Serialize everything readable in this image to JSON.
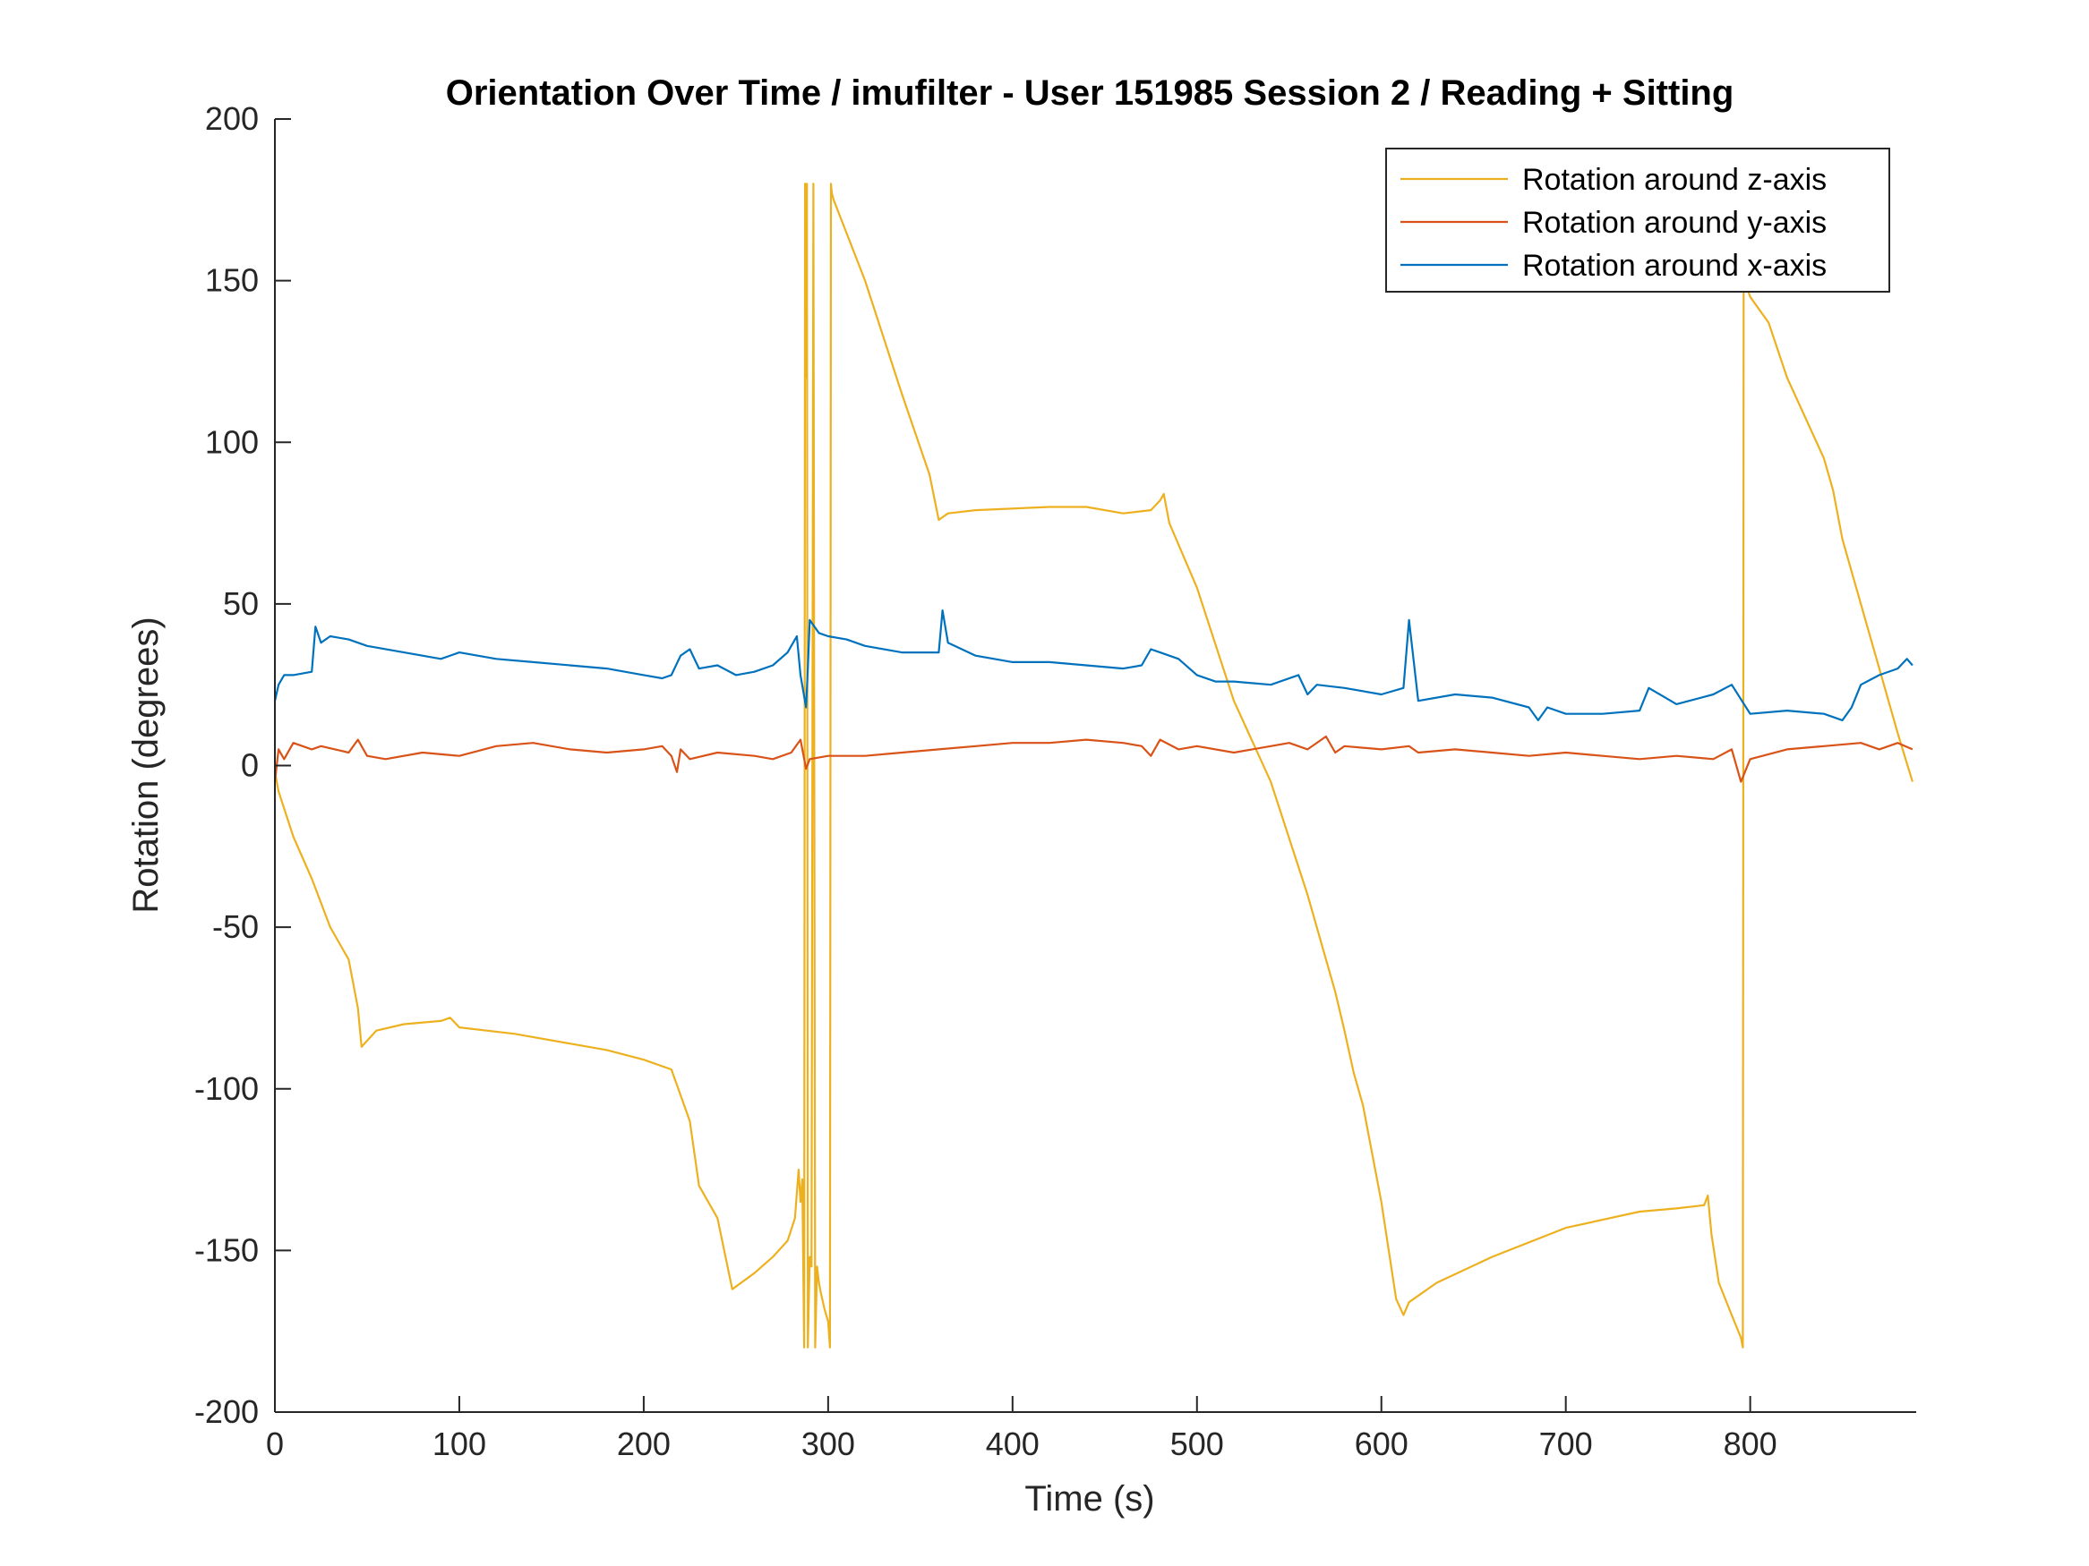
{
  "chart_data": {
    "type": "line",
    "title": "Orientation Over Time / imufilter - User 151985 Session 2 / Reading + Sitting",
    "xlabel": "Time (s)",
    "ylabel": "Rotation (degrees)",
    "xlim": [
      0,
      890
    ],
    "ylim": [
      -200,
      200
    ],
    "xticks": [
      0,
      100,
      200,
      300,
      400,
      500,
      600,
      700,
      800
    ],
    "yticks": [
      -200,
      -150,
      -100,
      -50,
      0,
      50,
      100,
      150,
      200
    ],
    "grid": false,
    "legend_position": "top-right",
    "series": [
      {
        "name": "Rotation around z-axis",
        "color": "#EDB120",
        "x": [
          0,
          2,
          10,
          20,
          30,
          40,
          45,
          47,
          55,
          70,
          90,
          95,
          100,
          130,
          160,
          180,
          200,
          215,
          225,
          230,
          240,
          248,
          260,
          270,
          278,
          282,
          284,
          285,
          286,
          287,
          287.5,
          288,
          288.5,
          289,
          290,
          291,
          292,
          293,
          294,
          295,
          296,
          298,
          300,
          301,
          301.5,
          302,
          303,
          305,
          320,
          340,
          355,
          360,
          365,
          380,
          420,
          440,
          460,
          475,
          480,
          482,
          485,
          500,
          520,
          540,
          560,
          575,
          580,
          585,
          590,
          600,
          608,
          612,
          615,
          630,
          660,
          700,
          740,
          760,
          775,
          777,
          779,
          783,
          790,
          795,
          796,
          796.5,
          797,
          800,
          810,
          820,
          840,
          845,
          850,
          860,
          870,
          880,
          888
        ],
        "y": [
          -2,
          -8,
          -22,
          -35,
          -50,
          -60,
          -75,
          -87,
          -82,
          -80,
          -79,
          -78,
          -81,
          -83,
          -86,
          -88,
          -91,
          -94,
          -110,
          -130,
          -140,
          -162,
          -157,
          -152,
          -147,
          -140,
          -125,
          -135,
          -128,
          -180,
          180,
          120,
          180,
          -180,
          -152,
          -155,
          180,
          -180,
          -155,
          -160,
          -163,
          -168,
          -172,
          -180,
          180,
          177,
          175,
          172,
          150,
          115,
          90,
          76,
          78,
          79,
          80,
          80,
          78,
          79,
          82,
          84,
          75,
          55,
          20,
          -5,
          -40,
          -70,
          -82,
          -95,
          -105,
          -135,
          -165,
          -170,
          -166,
          -160,
          -152,
          -143,
          -138,
          -137,
          -136,
          -133,
          -145,
          -160,
          -170,
          -177,
          -180,
          180,
          150,
          145,
          137,
          120,
          95,
          85,
          70,
          50,
          30,
          10,
          -5
        ]
      },
      {
        "name": "Rotation around y-axis",
        "color": "#D95319",
        "x": [
          0,
          2,
          5,
          10,
          20,
          25,
          40,
          45,
          50,
          60,
          80,
          100,
          120,
          140,
          160,
          180,
          200,
          210,
          215,
          218,
          220,
          225,
          240,
          260,
          270,
          280,
          285,
          288,
          290,
          300,
          320,
          340,
          360,
          380,
          400,
          420,
          440,
          460,
          470,
          475,
          480,
          490,
          500,
          520,
          540,
          550,
          560,
          570,
          575,
          580,
          600,
          615,
          620,
          640,
          660,
          680,
          700,
          720,
          740,
          760,
          780,
          790,
          795,
          800,
          820,
          840,
          860,
          870,
          880,
          888
        ],
        "y": [
          -5,
          5,
          2,
          7,
          5,
          6,
          4,
          8,
          3,
          2,
          4,
          3,
          6,
          7,
          5,
          4,
          5,
          6,
          3,
          -2,
          5,
          2,
          4,
          3,
          2,
          4,
          8,
          -1,
          2,
          3,
          3,
          4,
          5,
          6,
          7,
          7,
          8,
          7,
          6,
          3,
          8,
          5,
          6,
          4,
          6,
          7,
          5,
          9,
          4,
          6,
          5,
          6,
          4,
          5,
          4,
          3,
          4,
          3,
          2,
          3,
          2,
          5,
          -5,
          2,
          5,
          6,
          7,
          5,
          7,
          5
        ]
      },
      {
        "name": "Rotation around x-axis",
        "color": "#0072BD",
        "x": [
          0,
          2,
          5,
          10,
          20,
          22,
          25,
          30,
          40,
          50,
          70,
          90,
          100,
          120,
          140,
          160,
          180,
          200,
          210,
          215,
          220,
          225,
          230,
          240,
          250,
          260,
          270,
          278,
          283,
          285,
          288,
          289,
          290,
          295,
          300,
          310,
          320,
          340,
          360,
          362,
          365,
          380,
          400,
          420,
          440,
          460,
          470,
          475,
          480,
          490,
          500,
          510,
          520,
          540,
          555,
          560,
          565,
          580,
          600,
          612,
          615,
          620,
          640,
          660,
          680,
          685,
          690,
          700,
          720,
          740,
          745,
          760,
          780,
          790,
          800,
          820,
          840,
          850,
          855,
          860,
          870,
          880,
          885,
          888
        ],
        "y": [
          20,
          25,
          28,
          28,
          29,
          43,
          38,
          40,
          39,
          37,
          35,
          33,
          35,
          33,
          32,
          31,
          30,
          28,
          27,
          28,
          34,
          36,
          30,
          31,
          28,
          29,
          31,
          35,
          40,
          28,
          18,
          30,
          45,
          41,
          40,
          39,
          37,
          35,
          35,
          48,
          38,
          34,
          32,
          32,
          31,
          30,
          31,
          36,
          35,
          33,
          28,
          26,
          26,
          25,
          28,
          22,
          25,
          24,
          22,
          24,
          45,
          20,
          22,
          21,
          18,
          14,
          18,
          16,
          16,
          17,
          24,
          19,
          22,
          25,
          16,
          17,
          16,
          14,
          18,
          25,
          28,
          30,
          33,
          31
        ]
      }
    ]
  }
}
